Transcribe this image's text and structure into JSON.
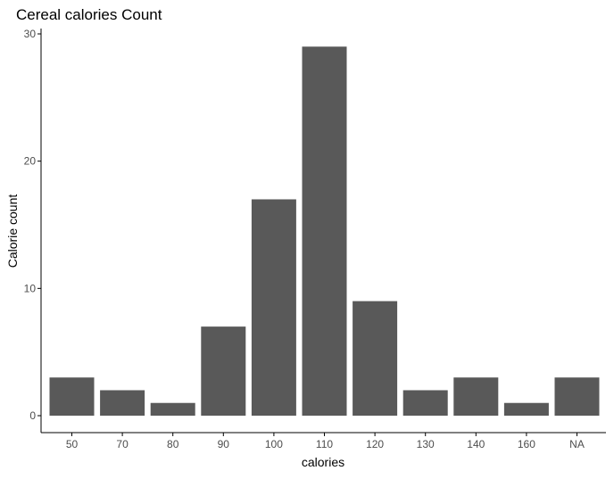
{
  "chart_data": {
    "type": "bar",
    "title": "Cereal calories Count",
    "xlabel": "calories",
    "ylabel": "Calorie count",
    "categories": [
      "50",
      "70",
      "80",
      "90",
      "100",
      "110",
      "120",
      "130",
      "140",
      "160",
      "NA"
    ],
    "values": [
      3,
      2,
      1,
      7,
      17,
      29,
      9,
      2,
      3,
      1,
      3
    ],
    "ylim": [
      0,
      30
    ],
    "yticks": [
      0,
      10,
      20,
      30
    ],
    "grid": false,
    "bar_color": "#595959"
  }
}
